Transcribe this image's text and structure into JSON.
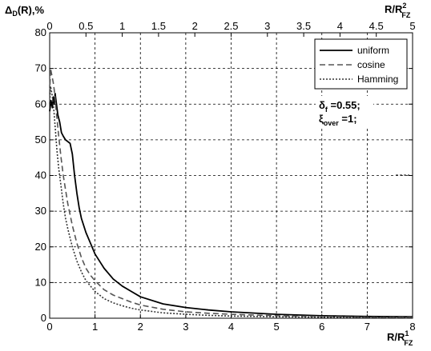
{
  "chart_data": {
    "type": "line",
    "ylabel": {
      "main": "Δ",
      "sub1": "D",
      "rest": "(R),%"
    },
    "xlabel_bottom": {
      "main": "R/R",
      "sup": "1",
      "sub": "FZ"
    },
    "xlabel_top": {
      "main": "R/R",
      "sup": "2",
      "sub": "FZ"
    },
    "xlim": [
      0,
      8
    ],
    "ylim": [
      0,
      80
    ],
    "x2lim": [
      0,
      5
    ],
    "x_ticks": [
      0,
      1,
      2,
      3,
      4,
      5,
      6,
      7,
      8
    ],
    "y_ticks": [
      0,
      10,
      20,
      30,
      40,
      50,
      60,
      70,
      80
    ],
    "x2_ticks": [
      0,
      0.5,
      1,
      1.5,
      2,
      2.5,
      3,
      3.5,
      4,
      4.5,
      5
    ],
    "grid": true,
    "legend_position": "top-right",
    "annotation": {
      "line1": {
        "main": "δ",
        "sub": "f",
        "rest": " =0.55;"
      },
      "line2": {
        "main": "ξ",
        "sub": "over",
        "rest": " =1;"
      }
    },
    "series": [
      {
        "name": "uniform",
        "style": "solid",
        "color": "#000000",
        "x": [
          0,
          0.03,
          0.06,
          0.08,
          0.1,
          0.12,
          0.15,
          0.18,
          0.22,
          0.26,
          0.3,
          0.35,
          0.4,
          0.45,
          0.5,
          0.55,
          0.6,
          0.65,
          0.7,
          0.8,
          0.9,
          1.0,
          1.2,
          1.4,
          1.6,
          1.8,
          2.0,
          2.5,
          3.0,
          3.5,
          4.0,
          5.0,
          6.0,
          7.0,
          8.0
        ],
        "y": [
          58,
          61,
          59,
          62,
          60,
          63,
          60,
          57,
          55,
          52,
          51,
          50,
          49.5,
          49,
          46,
          40,
          35,
          31,
          28,
          24,
          21,
          18,
          14,
          11,
          9,
          7.5,
          6,
          4,
          3,
          2.3,
          1.8,
          1.1,
          0.7,
          0.5,
          0.4
        ]
      },
      {
        "name": "cosine",
        "style": "dashed",
        "color": "#555555",
        "x": [
          0,
          0.02,
          0.05,
          0.08,
          0.1,
          0.13,
          0.16,
          0.2,
          0.25,
          0.3,
          0.35,
          0.4,
          0.5,
          0.6,
          0.7,
          0.8,
          0.9,
          1.0,
          1.2,
          1.4,
          1.6,
          1.8,
          2.0,
          2.5,
          3.0,
          3.5,
          4.0,
          5.0,
          6.0,
          7.0,
          8.0
        ],
        "y": [
          63,
          70,
          68,
          66,
          64,
          60,
          56,
          51,
          45,
          40,
          36,
          32,
          26,
          21,
          17,
          14,
          12,
          10.5,
          8,
          6.5,
          5.5,
          4.5,
          3.7,
          2.5,
          1.8,
          1.4,
          1.1,
          0.7,
          0.5,
          0.3,
          0.25
        ]
      },
      {
        "name": "Hamming",
        "style": "dotted",
        "color": "#333333",
        "x": [
          0,
          0.02,
          0.05,
          0.08,
          0.1,
          0.13,
          0.16,
          0.2,
          0.25,
          0.3,
          0.35,
          0.4,
          0.5,
          0.6,
          0.7,
          0.8,
          0.9,
          1.0,
          1.2,
          1.4,
          1.6,
          1.8,
          2.0,
          2.5,
          3.0,
          3.5,
          4.0,
          5.0,
          6.0,
          7.0,
          8.0
        ],
        "y": [
          60,
          65,
          63,
          60,
          57,
          52,
          47,
          42,
          37,
          32,
          28,
          25,
          20,
          16,
          13,
          10.5,
          9,
          7.5,
          5.5,
          4.3,
          3.5,
          2.8,
          2.3,
          1.5,
          1.1,
          0.8,
          0.6,
          0.4,
          0.3,
          0.2,
          0.15
        ]
      }
    ]
  }
}
